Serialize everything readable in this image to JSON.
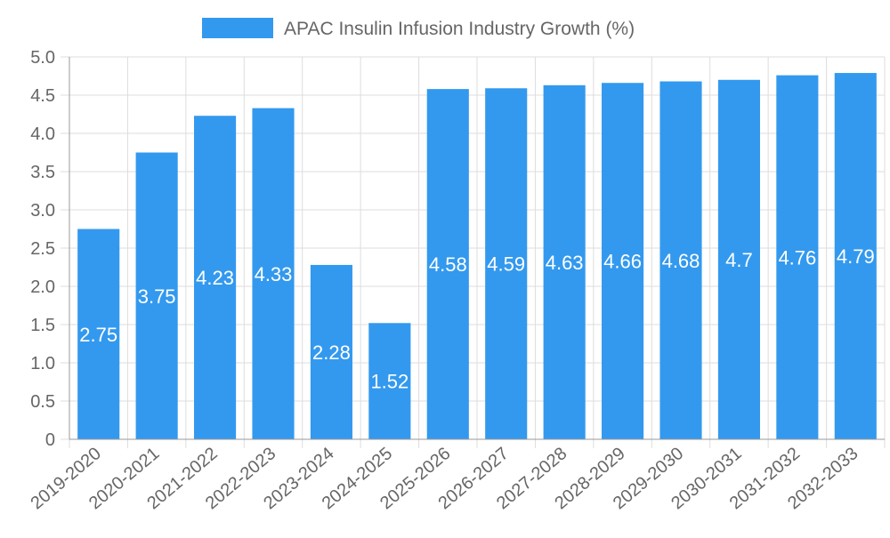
{
  "chart_data": {
    "type": "bar",
    "legend": {
      "label": "APAC Insulin Infusion Industry Growth (%)",
      "placement": "top-center",
      "color": "#3399ee"
    },
    "categories": [
      "2019-2020",
      "2020-2021",
      "2021-2022",
      "2022-2023",
      "2023-2024",
      "2024-2025",
      "2025-2026",
      "2026-2027",
      "2027-2028",
      "2028-2029",
      "2029-2030",
      "2030-2031",
      "2031-2032",
      "2032-2033"
    ],
    "series": [
      {
        "name": "APAC Insulin Infusion Industry Growth (%)",
        "values": [
          2.75,
          3.75,
          4.23,
          4.33,
          2.28,
          1.52,
          4.58,
          4.59,
          4.63,
          4.66,
          4.68,
          4.7,
          4.76,
          4.79
        ],
        "color": "#3399ee"
      }
    ],
    "data_labels": [
      "2.75",
      "3.75",
      "4.23",
      "4.33",
      "2.28",
      "1.52",
      "4.58",
      "4.59",
      "4.63",
      "4.66",
      "4.68",
      "4.7",
      "4.76",
      "4.79"
    ],
    "y_ticks": [
      "0",
      "0.5",
      "1.0",
      "1.5",
      "2.0",
      "2.5",
      "3.0",
      "3.5",
      "4.0",
      "4.5",
      "5.0"
    ],
    "ylim": [
      0,
      5
    ],
    "grid": true,
    "colors": {
      "bar": "#3399ee",
      "grid": "#dddddd",
      "axis": "#999999",
      "text": "#666666",
      "data_label": "#ffffff"
    }
  }
}
